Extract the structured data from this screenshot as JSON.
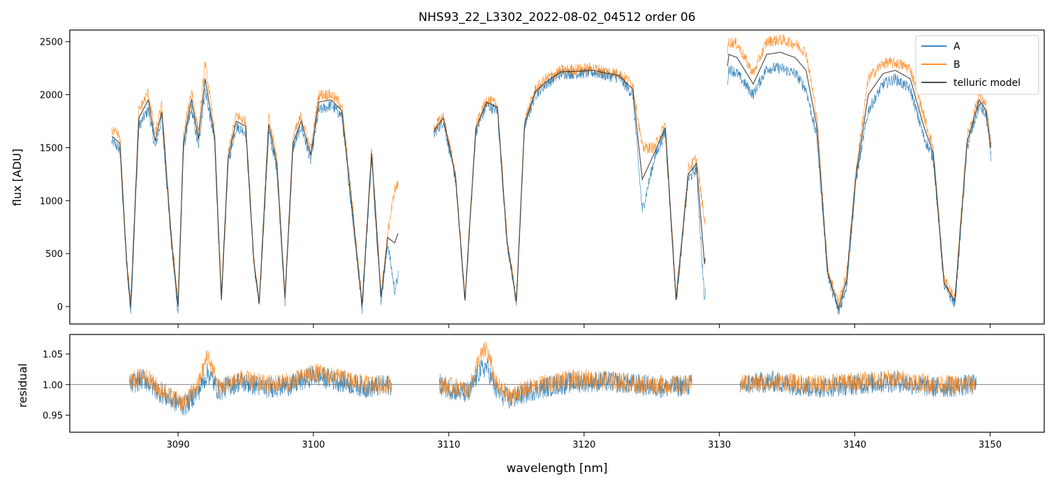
{
  "chart_data": [
    {
      "type": "line",
      "title": "NHS93_22_L3302_2022-08-02_04512  order 06",
      "xlabel": "",
      "ylabel": "flux [ADU]",
      "xlim": [
        3082,
        3154
      ],
      "ylim": [
        -165,
        2610
      ],
      "yticks": [
        0,
        500,
        1000,
        1500,
        2000,
        2500
      ],
      "xticks": [
        3090,
        3100,
        3110,
        3120,
        3130,
        3140,
        3150
      ],
      "grid": false,
      "legend": "top-right",
      "segments": [
        [
          3085.1,
          3106.3
        ],
        [
          3108.9,
          3129.0
        ],
        [
          3130.6,
          3150.1
        ]
      ],
      "series": [
        {
          "name": "A",
          "color": "#1f77b4",
          "x": [
            3085.2,
            3085.7,
            3086.2,
            3086.5,
            3087.1,
            3087.8,
            3088.3,
            3088.8,
            3089.5,
            3090.0,
            3090.4,
            3091.0,
            3091.5,
            3092.0,
            3092.7,
            3093.2,
            3093.7,
            3094.3,
            3095.0,
            3095.6,
            3096.0,
            3096.7,
            3097.3,
            3097.9,
            3098.5,
            3099.1,
            3099.8,
            3100.4,
            3101.3,
            3102.1,
            3102.8,
            3103.6,
            3104.3,
            3105.0,
            3105.5,
            3106.0,
            3109.0,
            3109.6,
            3110.5,
            3111.2,
            3112.0,
            3112.8,
            3113.6,
            3114.3,
            3115.0,
            3115.6,
            3116.4,
            3117.2,
            3118.3,
            3119.5,
            3120.7,
            3121.7,
            3122.6,
            3123.6,
            3124.3,
            3125.2,
            3126.0,
            3126.8,
            3127.7,
            3128.3,
            3128.9,
            3130.7,
            3131.3,
            3132.5,
            3133.5,
            3134.5,
            3135.6,
            3136.4,
            3137.2,
            3138.0,
            3138.8,
            3139.4,
            3140.1,
            3141.0,
            3142.1,
            3143.0,
            3144.1,
            3145.1,
            3145.8,
            3146.6,
            3147.4,
            3148.3,
            3149.2,
            3149.7,
            3150.1
          ],
          "values": [
            1550,
            1480,
            400,
            -60,
            1700,
            1860,
            1500,
            1780,
            600,
            -60,
            1500,
            1870,
            1500,
            2050,
            1550,
            30,
            1350,
            1700,
            1650,
            400,
            0,
            1650,
            1300,
            50,
            1500,
            1700,
            1380,
            1850,
            1900,
            1800,
            950,
            -20,
            1400,
            50,
            600,
            150,
            1650,
            1750,
            1200,
            50,
            1650,
            1900,
            1850,
            600,
            30,
            1700,
            2000,
            2100,
            2200,
            2200,
            2210,
            2180,
            2160,
            2000,
            900,
            1400,
            1650,
            40,
            1200,
            1300,
            50,
            2250,
            2200,
            2000,
            2250,
            2250,
            2200,
            2050,
            1600,
            300,
            -60,
            200,
            1200,
            1850,
            2100,
            2150,
            2050,
            1600,
            1400,
            200,
            20,
            1500,
            1900,
            1800,
            1400
          ]
        },
        {
          "name": "B",
          "color": "#ff7f0e",
          "x": [
            3085.2,
            3085.7,
            3086.2,
            3086.5,
            3087.1,
            3087.8,
            3088.3,
            3088.8,
            3089.5,
            3090.0,
            3090.4,
            3091.0,
            3091.5,
            3092.0,
            3092.7,
            3093.2,
            3093.7,
            3094.3,
            3095.0,
            3095.6,
            3096.0,
            3096.7,
            3097.3,
            3097.9,
            3098.5,
            3099.1,
            3099.8,
            3100.4,
            3101.3,
            3102.1,
            3102.8,
            3103.6,
            3104.3,
            3105.0,
            3105.5,
            3106.0,
            3109.0,
            3109.6,
            3110.5,
            3111.2,
            3112.0,
            3112.8,
            3113.6,
            3114.3,
            3115.0,
            3115.6,
            3116.4,
            3117.2,
            3118.3,
            3119.5,
            3120.7,
            3121.7,
            3122.6,
            3123.6,
            3124.3,
            3125.2,
            3126.0,
            3126.8,
            3127.7,
            3128.3,
            3128.9,
            3130.7,
            3131.3,
            3132.5,
            3133.5,
            3134.5,
            3135.6,
            3136.4,
            3137.2,
            3138.0,
            3138.8,
            3139.4,
            3140.1,
            3141.0,
            3142.1,
            3143.0,
            3144.1,
            3145.1,
            3145.8,
            3146.6,
            3147.4,
            3148.3,
            3149.2,
            3149.7,
            3150.1
          ],
          "values": [
            1650,
            1600,
            450,
            30,
            1850,
            2020,
            1620,
            1900,
            680,
            40,
            1600,
            2050,
            1650,
            2300,
            1650,
            90,
            1450,
            1800,
            1750,
            450,
            60,
            1780,
            1400,
            100,
            1600,
            1800,
            1480,
            2000,
            2000,
            1900,
            1050,
            40,
            1500,
            120,
            700,
            1100,
            1700,
            1800,
            1250,
            80,
            1700,
            1960,
            1900,
            650,
            60,
            1750,
            2050,
            2150,
            2230,
            2240,
            2250,
            2220,
            2200,
            2100,
            1500,
            1500,
            1720,
            80,
            1300,
            1400,
            800,
            2500,
            2480,
            2200,
            2500,
            2520,
            2480,
            2400,
            1800,
            350,
            30,
            300,
            1300,
            2150,
            2300,
            2300,
            2250,
            1800,
            1500,
            250,
            80,
            1600,
            2000,
            1900,
            1500
          ]
        },
        {
          "name": "telluric model",
          "color": "#333333",
          "x": [
            3085.2,
            3085.7,
            3086.2,
            3086.5,
            3087.1,
            3087.8,
            3088.3,
            3088.8,
            3089.5,
            3090.0,
            3090.4,
            3091.0,
            3091.5,
            3092.0,
            3092.7,
            3093.2,
            3093.7,
            3094.3,
            3095.0,
            3095.6,
            3096.0,
            3096.7,
            3097.3,
            3097.9,
            3098.5,
            3099.1,
            3099.8,
            3100.4,
            3101.3,
            3102.1,
            3102.8,
            3103.6,
            3104.3,
            3105.0,
            3105.5,
            3106.0,
            3109.0,
            3109.6,
            3110.5,
            3111.2,
            3112.0,
            3112.8,
            3113.6,
            3114.3,
            3115.0,
            3115.6,
            3116.4,
            3117.2,
            3118.3,
            3119.5,
            3120.7,
            3121.7,
            3122.6,
            3123.6,
            3124.3,
            3125.2,
            3126.0,
            3126.8,
            3127.7,
            3128.3,
            3128.9,
            3130.7,
            3131.3,
            3132.5,
            3133.5,
            3134.5,
            3135.6,
            3136.4,
            3137.2,
            3138.0,
            3138.8,
            3139.4,
            3140.1,
            3141.0,
            3142.1,
            3143.0,
            3144.1,
            3145.1,
            3145.8,
            3146.6,
            3147.4,
            3148.3,
            3149.2,
            3149.7,
            3150.1
          ],
          "values": [
            1600,
            1540,
            420,
            -10,
            1780,
            1950,
            1560,
            1840,
            640,
            0,
            1550,
            1960,
            1580,
            2150,
            1600,
            60,
            1400,
            1750,
            1700,
            420,
            30,
            1720,
            1350,
            80,
            1550,
            1750,
            1430,
            1930,
            1950,
            1850,
            1000,
            10,
            1450,
            90,
            650,
            600,
            1680,
            1780,
            1230,
            60,
            1680,
            1930,
            1880,
            620,
            45,
            1720,
            2030,
            2120,
            2215,
            2220,
            2230,
            2200,
            2180,
            2050,
            1200,
            1450,
            1690,
            60,
            1250,
            1350,
            400,
            2380,
            2350,
            2100,
            2380,
            2400,
            2350,
            2230,
            1700,
            320,
            -20,
            250,
            1250,
            2000,
            2200,
            2230,
            2150,
            1700,
            1450,
            220,
            50,
            1550,
            1950,
            1850,
            1450
          ]
        }
      ]
    },
    {
      "type": "line",
      "title": "",
      "xlabel": "wavelength [nm]",
      "ylabel": "residual",
      "xlim": [
        3082,
        3154
      ],
      "ylim": [
        0.922,
        1.082
      ],
      "yticks": [
        0.95,
        1.0,
        1.05
      ],
      "xticks": [
        3090,
        3100,
        3110,
        3120,
        3130,
        3140,
        3150
      ],
      "reference_line": 1.0,
      "grid": false,
      "legend": "none",
      "segments": [
        [
          3086.4,
          3105.8
        ],
        [
          3109.3,
          3128.0
        ],
        [
          3131.5,
          3149.0
        ]
      ],
      "series": [
        {
          "name": "A",
          "color": "#1f77b4",
          "x": [
            3086.4,
            3087.5,
            3088.5,
            3089.5,
            3090.5,
            3091.5,
            3092.2,
            3093.0,
            3094.5,
            3096.5,
            3098.5,
            3100.0,
            3102.0,
            3104.0,
            3105.8,
            3109.3,
            3110.5,
            3111.5,
            3112.2,
            3112.8,
            3113.5,
            3114.5,
            3116.0,
            3118.0,
            3120.0,
            3122.0,
            3124.0,
            3126.0,
            3128.0,
            3131.5,
            3134.0,
            3137.0,
            3140.0,
            3143.0,
            3146.0,
            3149.0
          ],
          "values": [
            1.0,
            1.01,
            0.99,
            0.975,
            0.965,
            0.99,
            1.02,
            0.99,
            1.005,
            0.995,
            1.0,
            1.015,
            1.005,
            0.995,
            1.0,
            1.0,
            0.99,
            0.985,
            1.02,
            1.03,
            0.99,
            0.975,
            0.99,
            1.0,
            1.005,
            1.005,
            1.0,
            0.995,
            1.0,
            1.0,
            1.005,
            0.995,
            1.0,
            1.005,
            0.995,
            1.0
          ],
          "noise": 0.018
        },
        {
          "name": "B",
          "color": "#ff7f0e",
          "x": [
            3086.4,
            3087.5,
            3088.5,
            3089.5,
            3090.5,
            3091.5,
            3092.2,
            3093.0,
            3094.5,
            3096.5,
            3098.5,
            3100.0,
            3102.0,
            3104.0,
            3105.8,
            3109.3,
            3110.5,
            3111.5,
            3112.2,
            3112.8,
            3113.5,
            3114.5,
            3116.0,
            3118.0,
            3120.0,
            3122.0,
            3124.0,
            3126.0,
            3128.0,
            3131.5,
            3134.0,
            3137.0,
            3140.0,
            3143.0,
            3146.0,
            3149.0
          ],
          "values": [
            1.005,
            1.015,
            0.995,
            0.98,
            0.97,
            1.0,
            1.05,
            0.995,
            1.01,
            1.0,
            1.005,
            1.02,
            1.01,
            1.0,
            1.0,
            1.0,
            0.995,
            0.99,
            1.04,
            1.06,
            1.0,
            0.98,
            0.995,
            1.005,
            1.01,
            1.005,
            1.0,
            1.0,
            1.0,
            1.0,
            1.005,
            1.0,
            1.005,
            1.01,
            1.0,
            1.0
          ],
          "noise": 0.016
        }
      ]
    }
  ]
}
